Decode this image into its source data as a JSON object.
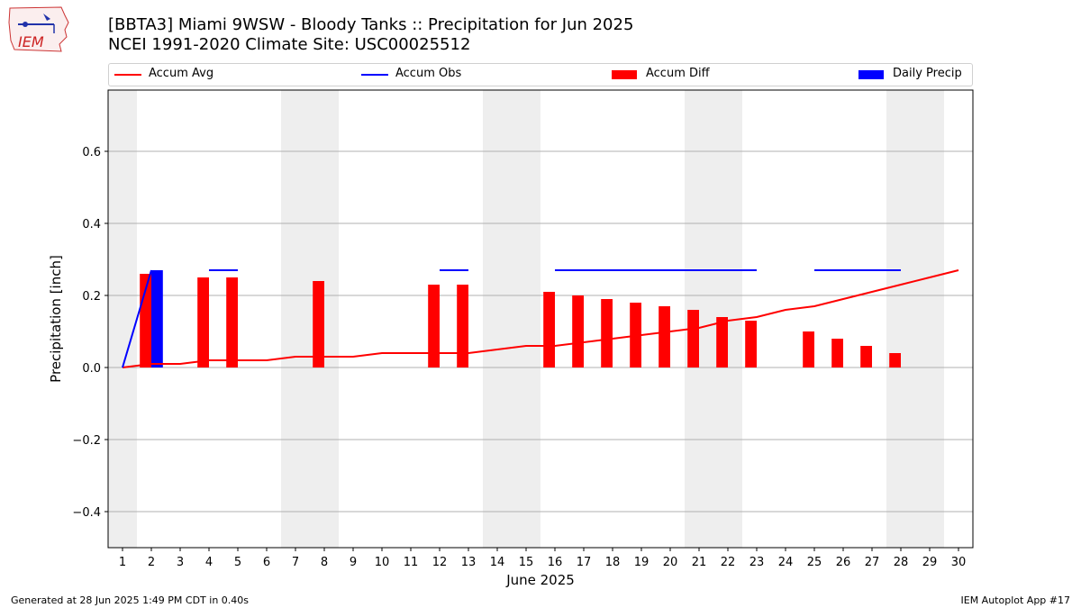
{
  "header": {
    "title_line1": "[BBTA3] Miami 9WSW - Bloody Tanks :: Precipitation for Jun 2025",
    "title_line2": "NCEI 1991-2020 Climate Site: USC00025512"
  },
  "logo": {
    "text": "IEM",
    "icon": "iem-iowa-logo-icon"
  },
  "footer": {
    "left": "Generated at 28 Jun 2025 1:49 PM CDT in 0.40s",
    "right": "IEM Autoplot App #17"
  },
  "colors": {
    "accum_avg": "#ff0000",
    "accum_obs": "#0000ff",
    "accum_diff": "#ff0000",
    "daily_precip": "#0000ff",
    "weekend_shade": "#eeeeee",
    "grid": "#b0b0b0"
  },
  "chart_data": {
    "type": "bar",
    "title": "[BBTA3] Miami 9WSW - Bloody Tanks :: Precipitation for Jun 2025",
    "subtitle": "NCEI 1991-2020 Climate Site: USC00025512",
    "xlabel": "June 2025",
    "ylabel": "Precipitation [inch]",
    "xlim": [
      0.5,
      30.5
    ],
    "ylim": [
      -0.5,
      0.77
    ],
    "yticks": [
      -0.4,
      -0.2,
      0.0,
      0.2,
      0.4,
      0.6
    ],
    "ytick_labels": [
      "−0.4",
      "−0.2",
      "0.0",
      "0.2",
      "0.4",
      "0.6"
    ],
    "xticks": [
      1,
      2,
      3,
      4,
      5,
      6,
      7,
      8,
      9,
      10,
      11,
      12,
      13,
      14,
      15,
      16,
      17,
      18,
      19,
      20,
      21,
      22,
      23,
      24,
      25,
      26,
      27,
      28,
      29,
      30
    ],
    "xtick_labels": [
      "1",
      "2",
      "3",
      "4",
      "5",
      "6",
      "7",
      "8",
      "9",
      "10",
      "11",
      "12",
      "13",
      "14",
      "15",
      "16",
      "17",
      "18",
      "19",
      "20",
      "21",
      "22",
      "23",
      "24",
      "25",
      "26",
      "27",
      "28",
      "29",
      "30"
    ],
    "grid": "y",
    "legend_placement": "top",
    "legend": [
      "Accum Avg",
      "Accum Obs",
      "Accum Diff",
      "Daily Precip"
    ],
    "weekend_shading": [
      [
        0.5,
        1.5
      ],
      [
        6.5,
        8.5
      ],
      [
        13.5,
        15.5
      ],
      [
        20.5,
        22.5
      ],
      [
        27.5,
        29.5
      ]
    ],
    "series": [
      {
        "name": "Accum Avg",
        "kind": "line",
        "x": [
          1,
          2,
          3,
          4,
          5,
          6,
          7,
          8,
          9,
          10,
          11,
          12,
          13,
          14,
          15,
          16,
          17,
          18,
          19,
          20,
          21,
          22,
          23,
          24,
          25,
          26,
          27,
          28,
          29,
          30
        ],
        "values": [
          0.0,
          0.01,
          0.01,
          0.02,
          0.02,
          0.02,
          0.03,
          0.03,
          0.03,
          0.04,
          0.04,
          0.04,
          0.04,
          0.05,
          0.06,
          0.06,
          0.07,
          0.08,
          0.09,
          0.1,
          0.11,
          0.13,
          0.14,
          0.16,
          0.17,
          0.19,
          0.21,
          0.23,
          0.25,
          0.27
        ]
      },
      {
        "name": "Accum Obs",
        "kind": "line",
        "segments": [
          {
            "x": [
              1,
              2
            ],
            "values": [
              0.0,
              0.27
            ]
          },
          {
            "x": [
              4,
              5
            ],
            "values": [
              0.27,
              0.27
            ]
          },
          {
            "x": [
              12,
              13
            ],
            "values": [
              0.27,
              0.27
            ]
          },
          {
            "x": [
              16,
              17,
              18,
              19,
              20,
              21,
              22,
              23
            ],
            "values": [
              0.27,
              0.27,
              0.27,
              0.27,
              0.27,
              0.27,
              0.27,
              0.27
            ]
          },
          {
            "x": [
              25,
              26,
              27,
              28
            ],
            "values": [
              0.27,
              0.27,
              0.27,
              0.27
            ]
          }
        ]
      },
      {
        "name": "Accum Diff",
        "kind": "bar",
        "x": [
          2,
          4,
          5,
          8,
          12,
          13,
          16,
          17,
          18,
          19,
          20,
          21,
          22,
          23,
          25,
          26,
          27,
          28
        ],
        "values": [
          0.26,
          0.25,
          0.25,
          0.24,
          0.23,
          0.23,
          0.21,
          0.2,
          0.19,
          0.18,
          0.17,
          0.16,
          0.14,
          0.13,
          0.1,
          0.08,
          0.06,
          0.04
        ]
      },
      {
        "name": "Daily Precip",
        "kind": "bar",
        "x": [
          2
        ],
        "values": [
          0.27
        ]
      }
    ]
  }
}
